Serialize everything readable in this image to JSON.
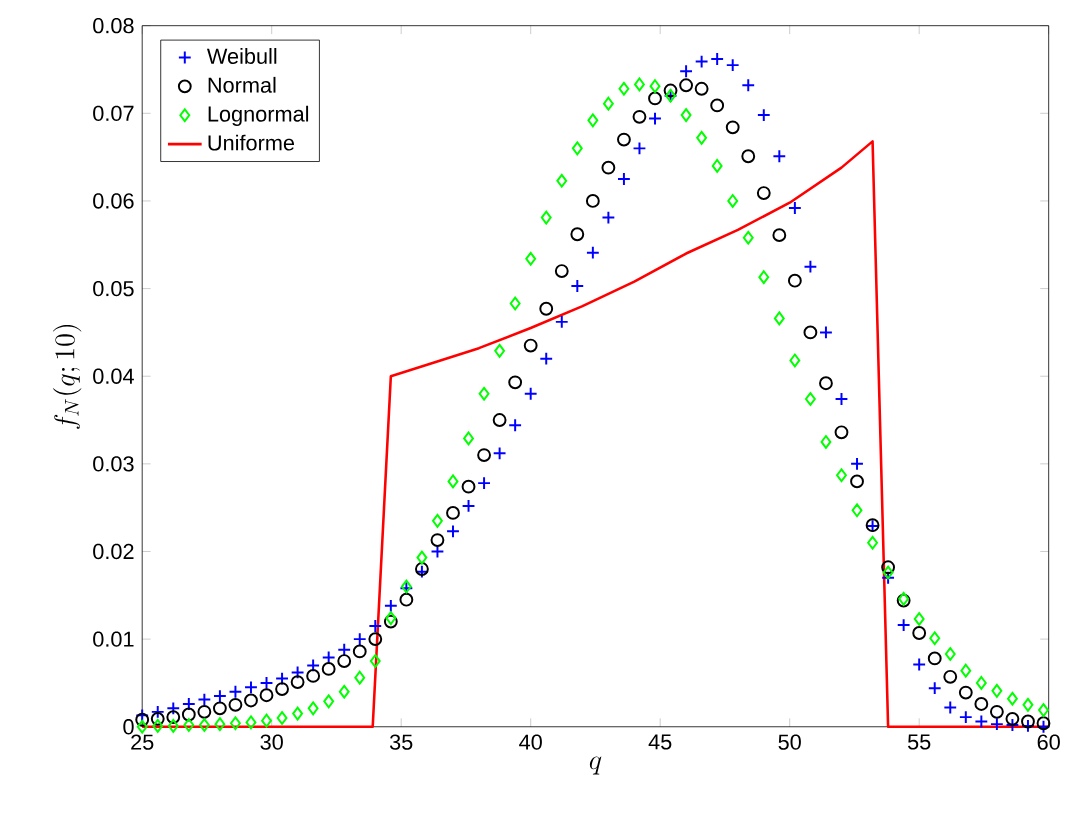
{
  "chart_data": {
    "type": "scatter",
    "xlabel": "q",
    "ylabel": "f_N(q;10)",
    "xlim": [
      25,
      60
    ],
    "ylim": [
      0,
      0.08
    ],
    "xticks": [
      25,
      30,
      35,
      40,
      45,
      50,
      55,
      60
    ],
    "yticks": [
      0,
      0.01,
      0.02,
      0.03,
      0.04,
      0.05,
      0.06,
      0.07,
      0.08
    ],
    "grid": false,
    "legend": "top left",
    "x": [
      25.0,
      25.6,
      26.2,
      26.8,
      27.4,
      28.0,
      28.6,
      29.2,
      29.8,
      30.4,
      31.0,
      31.6,
      32.2,
      32.8,
      33.4,
      34.0,
      34.6,
      35.2,
      35.8,
      36.4,
      37.0,
      37.6,
      38.2,
      38.8,
      39.4,
      40.0,
      40.6,
      41.2,
      41.8,
      42.4,
      43.0,
      43.6,
      44.2,
      44.8,
      45.4,
      46.0,
      46.6,
      47.2,
      47.8,
      48.4,
      49.0,
      49.6,
      50.2,
      50.8,
      51.4,
      52.0,
      52.6,
      53.2,
      53.8,
      54.4,
      55.0,
      55.6,
      56.2,
      56.8,
      57.4,
      58.0,
      58.6,
      59.2,
      59.8
    ],
    "series": [
      {
        "name": "Weibull",
        "marker": "cross",
        "color": "#0000ff",
        "values": [
          0.0013,
          0.0017,
          0.0021,
          0.0026,
          0.0031,
          0.0035,
          0.004,
          0.0045,
          0.005,
          0.0055,
          0.0062,
          0.007,
          0.0079,
          0.0088,
          0.01,
          0.0115,
          0.0138,
          0.0158,
          0.0177,
          0.02,
          0.0223,
          0.0252,
          0.0278,
          0.0312,
          0.0344,
          0.038,
          0.042,
          0.0462,
          0.0503,
          0.0541,
          0.0581,
          0.0625,
          0.066,
          0.0694,
          0.072,
          0.0748,
          0.0759,
          0.0762,
          0.0755,
          0.0732,
          0.0698,
          0.0651,
          0.0592,
          0.0525,
          0.045,
          0.0374,
          0.03,
          0.0229,
          0.017,
          0.0116,
          0.0071,
          0.0044,
          0.0022,
          0.0011,
          0.0006,
          0.0003,
          0.0002,
          0.0001,
          0.0
        ]
      },
      {
        "name": "Normal",
        "marker": "circle",
        "color": "#000000",
        "values": [
          0.0008,
          0.0009,
          0.0011,
          0.0014,
          0.0017,
          0.0021,
          0.0025,
          0.003,
          0.0036,
          0.0043,
          0.0051,
          0.0058,
          0.0066,
          0.0075,
          0.0086,
          0.01,
          0.012,
          0.0145,
          0.018,
          0.0213,
          0.0244,
          0.0274,
          0.031,
          0.035,
          0.0393,
          0.0435,
          0.0477,
          0.052,
          0.0562,
          0.06,
          0.0638,
          0.067,
          0.0696,
          0.0717,
          0.0726,
          0.0732,
          0.0728,
          0.0709,
          0.0684,
          0.0651,
          0.0609,
          0.0561,
          0.0509,
          0.045,
          0.0392,
          0.0336,
          0.028,
          0.023,
          0.0182,
          0.0144,
          0.0107,
          0.0078,
          0.0057,
          0.0039,
          0.0026,
          0.0017,
          0.0009,
          0.0006,
          0.0004
        ]
      },
      {
        "name": "Lognormal",
        "marker": "diamond",
        "color": "#00ff00",
        "values": [
          0.0,
          0.0001,
          0.0001,
          0.0002,
          0.0002,
          0.0003,
          0.0004,
          0.0005,
          0.0007,
          0.001,
          0.0015,
          0.0021,
          0.0029,
          0.004,
          0.0056,
          0.0075,
          0.0124,
          0.016,
          0.0193,
          0.0235,
          0.028,
          0.0329,
          0.038,
          0.0429,
          0.0483,
          0.0534,
          0.0581,
          0.0623,
          0.066,
          0.0692,
          0.0711,
          0.0728,
          0.0733,
          0.0731,
          0.072,
          0.0698,
          0.0672,
          0.064,
          0.06,
          0.0558,
          0.0513,
          0.0466,
          0.0418,
          0.0374,
          0.0325,
          0.0287,
          0.0247,
          0.021,
          0.0176,
          0.0146,
          0.0123,
          0.0101,
          0.0083,
          0.0064,
          0.005,
          0.0041,
          0.0032,
          0.0025,
          0.0019
        ]
      },
      {
        "name": "Uniforme",
        "type": "line",
        "marker": "none",
        "line_style": "solid",
        "color": "#ff0000",
        "x": [
          25,
          33.9,
          34.6,
          36,
          38,
          40,
          42,
          44,
          46,
          48,
          50,
          52,
          53.2,
          53.8,
          60
        ],
        "values": [
          0,
          0,
          0.04,
          0.0413,
          0.0432,
          0.0455,
          0.048,
          0.0508,
          0.054,
          0.0567,
          0.0598,
          0.0638,
          0.0668,
          0,
          0
        ]
      }
    ]
  }
}
